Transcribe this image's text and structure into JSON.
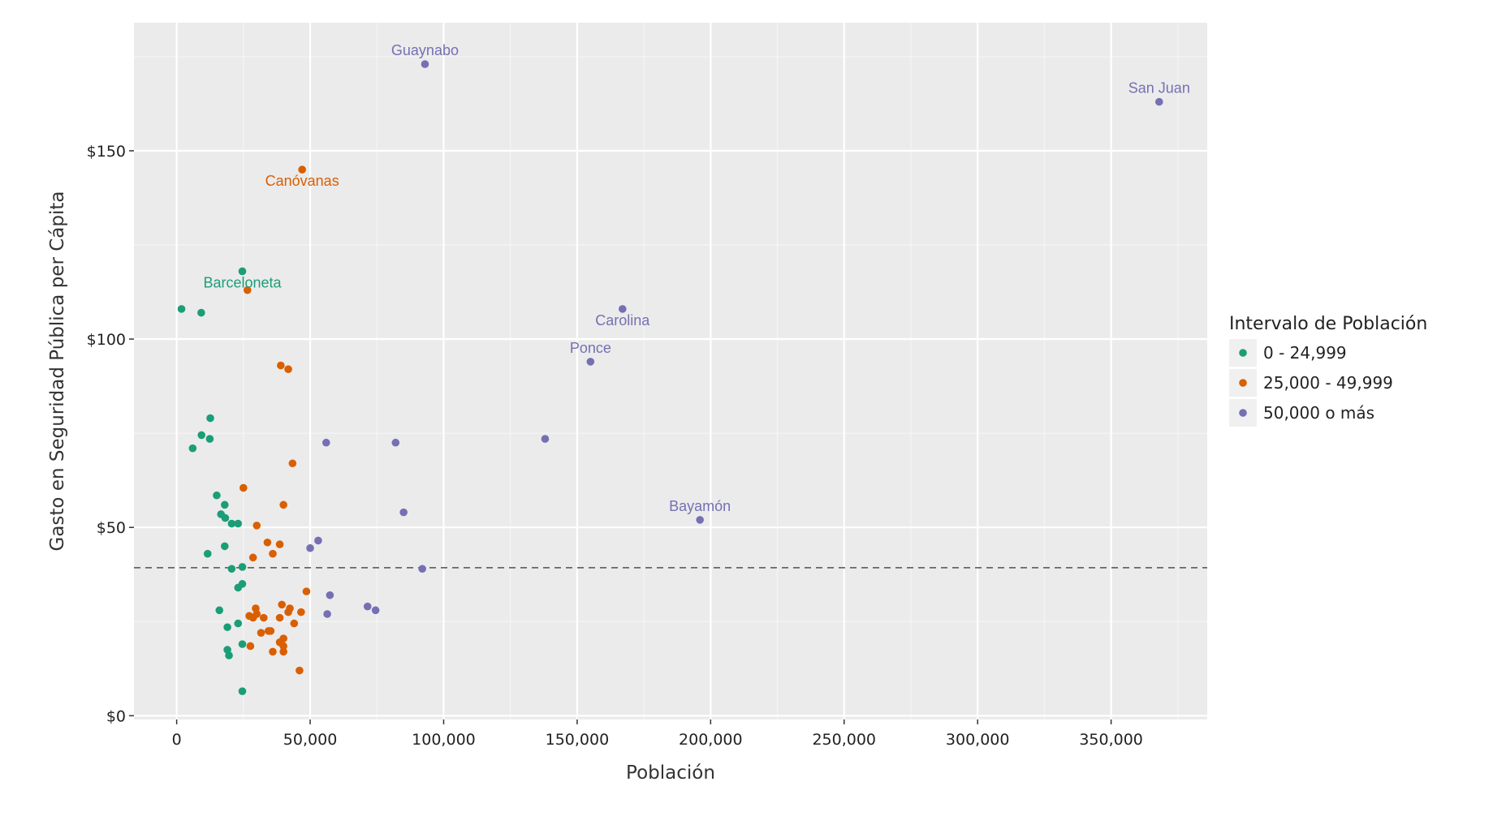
{
  "chart_data": {
    "type": "scatter",
    "xlabel": "Población",
    "ylabel": "Gasto en Seguridad Pública per Cápita",
    "xlim": [
      -16000,
      386000
    ],
    "ylim": [
      -1,
      184
    ],
    "x_ticks": [
      0,
      50000,
      100000,
      150000,
      200000,
      250000,
      300000,
      350000
    ],
    "x_tick_labels": [
      "0",
      "50,000",
      "100,000",
      "150,000",
      "200,000",
      "250,000",
      "300,000",
      "350,000"
    ],
    "y_ticks": [
      0,
      50,
      100,
      150
    ],
    "y_tick_labels": [
      "$0",
      "$50",
      "$100",
      "$150"
    ],
    "reference_line": {
      "y": 39.3,
      "style": "dashed",
      "color": "#666666"
    },
    "grid": true,
    "panel_background": "#ebebeb",
    "legend": {
      "title": "Intervalo de Población",
      "position": "right",
      "entries": [
        "0 - 24,999",
        "25,000 - 49,999",
        "50,000 o más"
      ]
    },
    "series": [
      {
        "name": "0 - 24,999",
        "color": "#1b9e77",
        "points": [
          [
            1800,
            108
          ],
          [
            9200,
            107
          ],
          [
            24600,
            118
          ],
          [
            12600,
            79
          ],
          [
            9300,
            74.5
          ],
          [
            12400,
            73.5
          ],
          [
            6000,
            71
          ],
          [
            15000,
            58.5
          ],
          [
            18000,
            56
          ],
          [
            16600,
            53.5
          ],
          [
            18200,
            52.5
          ],
          [
            20600,
            51
          ],
          [
            23000,
            51
          ],
          [
            18000,
            45
          ],
          [
            11600,
            43
          ],
          [
            24600,
            39.5
          ],
          [
            20600,
            39
          ],
          [
            23000,
            34
          ],
          [
            24600,
            35
          ],
          [
            16000,
            28
          ],
          [
            19000,
            23.5
          ],
          [
            23000,
            24.5
          ],
          [
            24600,
            19
          ],
          [
            19000,
            17.5
          ],
          [
            19600,
            16
          ],
          [
            24600,
            6.5
          ]
        ]
      },
      {
        "name": "25,000 - 49,999",
        "color": "#d95f02",
        "points": [
          [
            47000,
            145
          ],
          [
            26500,
            113
          ],
          [
            39000,
            93
          ],
          [
            41800,
            92
          ],
          [
            43400,
            67
          ],
          [
            25000,
            60.5
          ],
          [
            40000,
            56
          ],
          [
            30000,
            50.5
          ],
          [
            34000,
            46
          ],
          [
            38600,
            45.5
          ],
          [
            36000,
            43
          ],
          [
            28600,
            42
          ],
          [
            48600,
            33
          ],
          [
            39400,
            29.5
          ],
          [
            29600,
            28.5
          ],
          [
            42400,
            28.5
          ],
          [
            46600,
            27.5
          ],
          [
            41800,
            27.5
          ],
          [
            27200,
            26.5
          ],
          [
            30000,
            27
          ],
          [
            28600,
            26
          ],
          [
            38600,
            26
          ],
          [
            32600,
            26
          ],
          [
            44000,
            24.5
          ],
          [
            34400,
            22.5
          ],
          [
            35200,
            22.5
          ],
          [
            31600,
            22
          ],
          [
            40000,
            20.5
          ],
          [
            38600,
            19.5
          ],
          [
            40000,
            18.5
          ],
          [
            27600,
            18.5
          ],
          [
            36000,
            17
          ],
          [
            40000,
            17
          ],
          [
            46000,
            12
          ]
        ]
      },
      {
        "name": "50,000 o más",
        "color": "#7570b3",
        "points": [
          [
            93000,
            173
          ],
          [
            368000,
            163
          ],
          [
            167000,
            108
          ],
          [
            155000,
            94
          ],
          [
            138000,
            73.5
          ],
          [
            56000,
            72.5
          ],
          [
            82000,
            72.5
          ],
          [
            85000,
            54
          ],
          [
            196000,
            52
          ],
          [
            53000,
            46.5
          ],
          [
            50000,
            44.5
          ],
          [
            92000,
            39
          ],
          [
            57400,
            32
          ],
          [
            71500,
            29
          ],
          [
            74500,
            28
          ],
          [
            56400,
            27
          ]
        ]
      }
    ],
    "annotations": [
      {
        "text": "Guaynabo",
        "series": 2,
        "x": 93000,
        "y": 173,
        "placement": "above"
      },
      {
        "text": "San Juan",
        "series": 2,
        "x": 368000,
        "y": 163,
        "placement": "above"
      },
      {
        "text": "Canóvanas",
        "series": 1,
        "x": 47000,
        "y": 145,
        "placement": "below"
      },
      {
        "text": "Barceloneta",
        "series": 0,
        "x": 24600,
        "y": 118,
        "placement": "below"
      },
      {
        "text": "Carolina",
        "series": 2,
        "x": 167000,
        "y": 108,
        "placement": "below"
      },
      {
        "text": "Ponce",
        "series": 2,
        "x": 155000,
        "y": 94,
        "placement": "above"
      },
      {
        "text": "Bayamón",
        "series": 2,
        "x": 196000,
        "y": 52,
        "placement": "above"
      }
    ]
  }
}
